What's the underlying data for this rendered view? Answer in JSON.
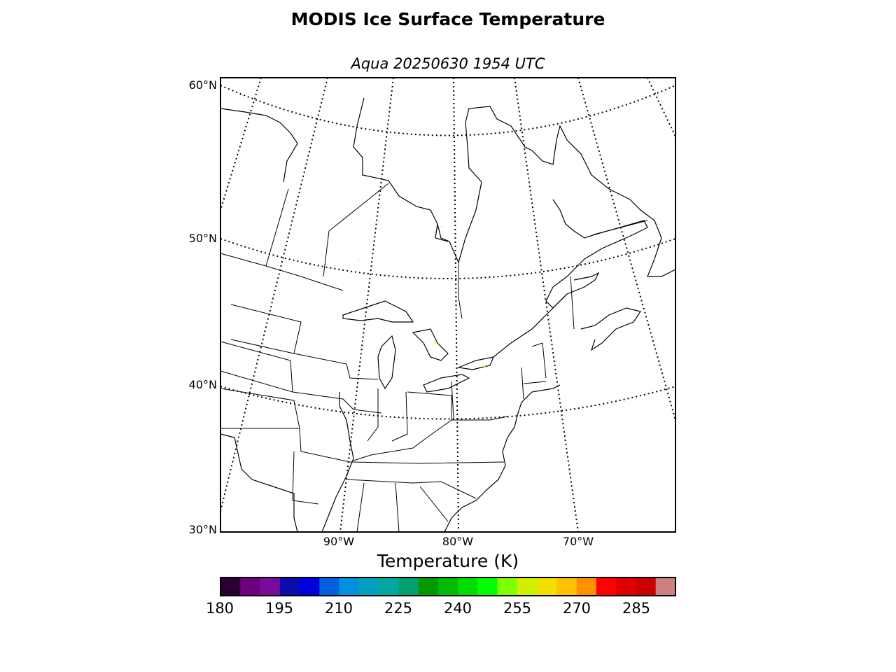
{
  "title": "MODIS Ice Surface Temperature",
  "subtitle": "Aqua 20250630 1954 UTC",
  "lat_labels": [
    "60°N",
    "50°N",
    "40°N",
    "30°N"
  ],
  "lon_labels": [
    "90°W",
    "80°W",
    "70°W"
  ],
  "colorbar": {
    "label": "Temperature (K)",
    "ticks": [
      "180",
      "195",
      "210",
      "225",
      "240",
      "255",
      "270",
      "285"
    ],
    "colors": [
      "#2a0033",
      "#6f0080",
      "#7a0a9a",
      "#0c0caa",
      "#0000dd",
      "#0060dd",
      "#0090dd",
      "#00a0c0",
      "#00a8a0",
      "#00a070",
      "#009900",
      "#00bb00",
      "#00dd00",
      "#00ff00",
      "#80ff00",
      "#d0f000",
      "#f0e000",
      "#ffc000",
      "#ff9000",
      "#ff0000",
      "#e00000",
      "#cc0000",
      "#cc8080"
    ]
  },
  "colors": {
    "frame": "#000000",
    "coast": "#000000",
    "ice_marks": "#ffff00"
  }
}
